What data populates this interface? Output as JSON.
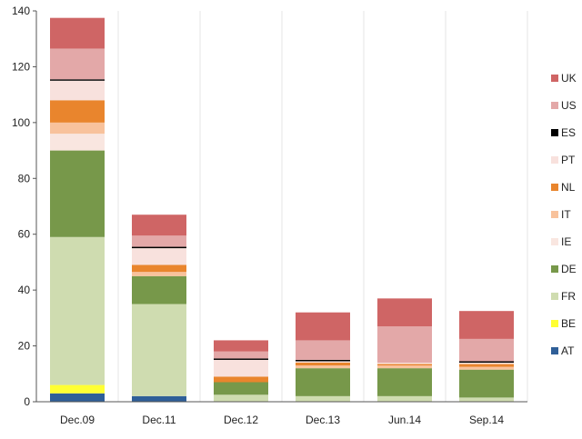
{
  "chart_data": {
    "type": "bar",
    "stacked": true,
    "title": "",
    "xlabel": "",
    "ylabel": "",
    "ylim": [
      0,
      140
    ],
    "yticks": [
      0,
      20,
      40,
      60,
      80,
      100,
      120,
      140
    ],
    "grid": "vertical category separators",
    "legend_position": "right",
    "categories": [
      "Dec.09",
      "Dec.11",
      "Dec.12",
      "Dec.13",
      "Jun.14",
      "Sep.14"
    ],
    "series": [
      {
        "name": "AT",
        "color": "#2f5f98",
        "values": [
          3,
          2,
          0,
          0,
          0,
          0
        ]
      },
      {
        "name": "BE",
        "color": "#ffff33",
        "values": [
          3,
          0,
          0,
          0,
          0,
          0
        ]
      },
      {
        "name": "FR",
        "color": "#cfdcb0",
        "values": [
          53,
          33,
          2.5,
          2,
          2,
          1.5
        ]
      },
      {
        "name": "DE",
        "color": "#77984a",
        "values": [
          31,
          10,
          4.5,
          10,
          10,
          10
        ]
      },
      {
        "name": "IE",
        "color": "#f9e6e0",
        "values": [
          6,
          0,
          0,
          0,
          0,
          0
        ]
      },
      {
        "name": "IT",
        "color": "#f8c29c",
        "values": [
          4,
          1.5,
          0,
          1,
          1,
          1
        ]
      },
      {
        "name": "NL",
        "color": "#e9852d",
        "values": [
          8,
          2.5,
          2,
          1,
          0.5,
          1
        ]
      },
      {
        "name": "PT",
        "color": "#f8e1dd",
        "values": [
          7,
          6,
          6,
          0.5,
          0.5,
          0.5
        ]
      },
      {
        "name": "ES",
        "color": "#000000",
        "values": [
          0.5,
          0.5,
          0.5,
          0.5,
          0,
          0.5
        ]
      },
      {
        "name": "US",
        "color": "#e3a8a8",
        "values": [
          11,
          4,
          2.5,
          7,
          13,
          8
        ]
      },
      {
        "name": "UK",
        "color": "#cf6565",
        "values": [
          11,
          7.5,
          4,
          10,
          10,
          10
        ]
      }
    ],
    "legend_order": [
      "UK",
      "US",
      "ES",
      "PT",
      "NL",
      "IT",
      "IE",
      "DE",
      "FR",
      "BE",
      "AT"
    ]
  }
}
